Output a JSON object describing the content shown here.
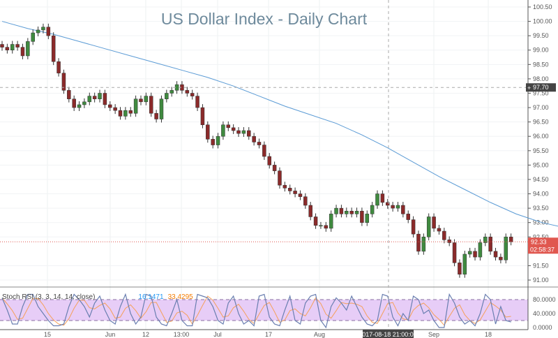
{
  "chart_data": {
    "type": "candlestick",
    "title": "US Dollar Index - Daily Chart",
    "y_axis": {
      "range": [
        90.75,
        100.6
      ],
      "ticks": [
        "100.50",
        "100.00",
        "99.50",
        "99.00",
        "98.50",
        "98.00",
        "97.50",
        "97.00",
        "96.50",
        "96.00",
        "95.50",
        "95.00",
        "94.50",
        "94.00",
        "93.50",
        "93.00",
        "92.50",
        "91.50",
        "91.00"
      ]
    },
    "x_axis": {
      "tick_labels": [
        "15",
        "Jun",
        "12",
        "13:00",
        "Jul",
        "17",
        "Aug",
        "Sep",
        "18"
      ]
    },
    "crosshair": {
      "date_label": "2017-08-18 21:00:00",
      "price_label": "97.70"
    },
    "last_price": {
      "value": "92.33",
      "countdown": "02:58:37",
      "color": "#e0574f"
    },
    "colors": {
      "up": "#3f8a3f",
      "down": "#8b2a2a",
      "ma": "#5b9bd5",
      "stoch_band": "#e7cdf7"
    },
    "closes": [
      99.1,
      99.0,
      99.2,
      99.1,
      98.8,
      99.3,
      99.6,
      99.7,
      99.8,
      99.5,
      98.6,
      98.2,
      97.6,
      97.3,
      97.0,
      97.1,
      97.2,
      97.4,
      97.3,
      97.5,
      97.1,
      97.0,
      96.9,
      96.7,
      96.9,
      96.8,
      97.3,
      97.2,
      97.4,
      96.8,
      96.6,
      97.3,
      97.5,
      97.6,
      97.8,
      97.6,
      97.5,
      97.4,
      97.0,
      96.4,
      95.9,
      95.7,
      96.0,
      96.4,
      96.3,
      96.2,
      96.1,
      96.2,
      96.0,
      95.8,
      95.7,
      95.3,
      95.0,
      94.8,
      94.3,
      94.2,
      94.1,
      94.0,
      93.9,
      93.6,
      93.2,
      92.9,
      92.9,
      92.8,
      93.3,
      93.5,
      93.3,
      93.4,
      93.3,
      93.4,
      93.0,
      93.3,
      93.6,
      94.0,
      93.7,
      93.6,
      93.5,
      93.6,
      93.3,
      93.1,
      92.6,
      92.0,
      92.5,
      93.2,
      92.8,
      92.7,
      92.4,
      92.3,
      91.6,
      91.2,
      91.9,
      92.0,
      91.8,
      92.3,
      92.5,
      92.0,
      91.8,
      91.7,
      92.5,
      92.33
    ],
    "moving_average": {
      "every_n_bars": 5,
      "values": [
        100.0,
        99.75,
        99.55,
        99.3,
        99.05,
        98.8,
        98.55,
        98.3,
        98.05,
        97.75,
        97.4,
        97.05,
        96.75,
        96.45,
        96.05,
        95.6,
        95.1,
        94.6,
        94.15,
        93.7,
        93.3,
        93.0,
        92.8,
        92.65
      ]
    },
    "stoch_rsi": {
      "label": "Stoch RSI (3, 3, 14, 14, close)",
      "k_value": "16.1471",
      "d_value": "33.4295",
      "levels": [
        80,
        20
      ],
      "ticks": [
        "80.0000",
        "40.0000",
        "0.0000"
      ],
      "k": [
        85,
        50,
        10,
        10,
        60,
        95,
        95,
        60,
        40,
        20,
        5,
        5,
        10,
        60,
        95,
        80,
        60,
        30,
        70,
        90,
        50,
        20,
        10,
        60,
        95,
        40,
        10,
        30,
        95,
        90,
        30,
        10,
        5,
        40,
        80,
        20,
        5,
        5,
        95,
        90,
        85,
        60,
        20,
        10,
        70,
        90,
        40,
        10,
        20,
        5,
        90,
        95,
        30,
        10,
        5,
        50,
        90,
        20,
        10,
        70,
        90,
        95,
        20,
        0,
        60,
        85,
        70,
        50,
        90,
        60,
        30,
        10,
        5,
        20,
        95,
        90,
        30,
        5,
        40,
        20,
        90,
        80,
        40,
        50,
        20,
        0,
        0,
        95,
        70,
        30,
        10,
        20,
        5,
        40,
        95,
        80,
        10,
        60,
        20,
        16
      ]
    }
  }
}
